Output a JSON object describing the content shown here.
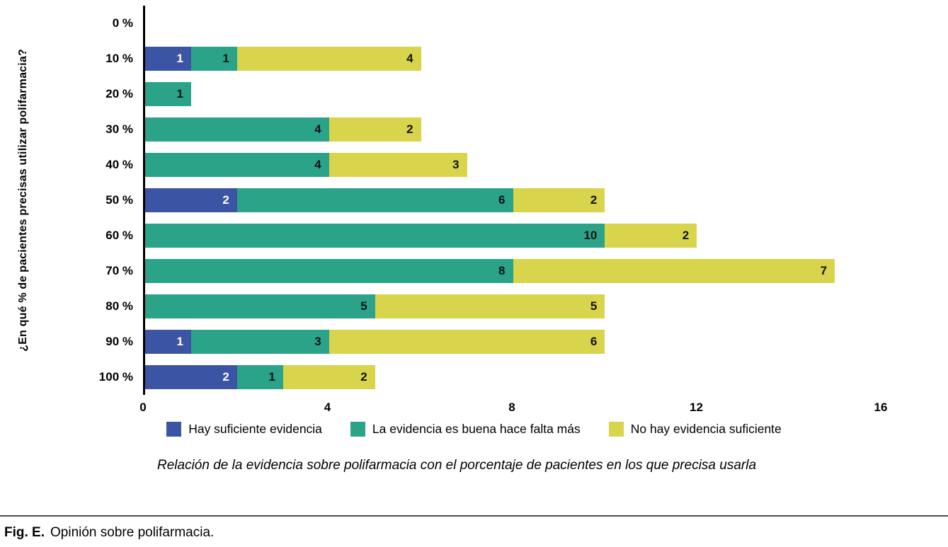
{
  "chart_data": {
    "type": "bar",
    "orientation": "horizontal",
    "stacked": true,
    "title": "",
    "xlabel": "",
    "ylabel": "¿En qué % de pacientes precisas utilizar polifarmacia?",
    "categories": [
      "0 %",
      "10 %",
      "20 %",
      "30 %",
      "40 %",
      "50 %",
      "60 %",
      "70 %",
      "80 %",
      "90 %",
      "100 %"
    ],
    "series": [
      {
        "name": "Hay suficiente evidencia",
        "color": "#3c54a4",
        "label_color": "#ffffff",
        "values": [
          0,
          1,
          0,
          0,
          0,
          2,
          0,
          0,
          0,
          1,
          2
        ]
      },
      {
        "name": "La evidencia es buena hace falta más",
        "color": "#2ba389",
        "label_color": "#111111",
        "values": [
          0,
          1,
          1,
          4,
          4,
          6,
          10,
          8,
          5,
          3,
          1
        ]
      },
      {
        "name": "No hay evidencia suficiente",
        "color": "#d8d44c",
        "label_color": "#111111",
        "values": [
          0,
          4,
          0,
          2,
          3,
          2,
          2,
          7,
          5,
          6,
          2
        ]
      }
    ],
    "xlim": [
      0,
      16
    ],
    "xticks": [
      0,
      4,
      8,
      12,
      16
    ],
    "grid": false,
    "legend_position": "bottom",
    "caption": "Relación de la evidencia sobre polifarmacia con el porcentaje de pacientes en los que precisa usarla"
  },
  "figure": {
    "label": "Fig. E.",
    "title": "Opinión sobre polifarmacia."
  }
}
